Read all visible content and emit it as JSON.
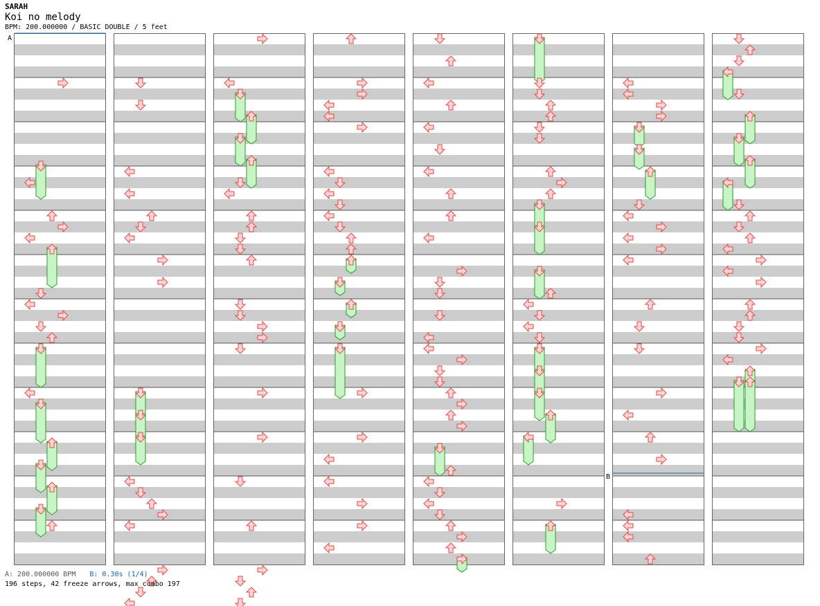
{
  "header": {
    "artist": "SARAH",
    "title": "Koi no melody",
    "info": "BPM: 200.000000 / BASIC DOUBLE / 5 feet"
  },
  "markers": {
    "a_label": "A",
    "b_label": "B"
  },
  "colors": {
    "stripe_dark": "#cccccc",
    "stripe_light": "#ffffff",
    "arrow_fill": "#ffd4d4",
    "arrow_stroke": "#e04a4a",
    "freeze_fill": "#c8f5c8",
    "freeze_stroke": "#2e9a2e",
    "marker_line": "#1565a8"
  },
  "footer": {
    "bpm_note": "A: 200.000000 BPM",
    "stop_note": "B: 0.30s (1/4)",
    "stats": "196 steps, 42 freeze arrows, max combo 197"
  },
  "notes": {
    "col1": [
      [
        "4",
        "r"
      ],
      [
        "11.5",
        "d",
        3
      ],
      [
        "13",
        "l"
      ],
      [
        "16",
        "u"
      ],
      [
        "17",
        "r"
      ],
      [
        "18",
        "l"
      ],
      [
        "19",
        "u",
        3.5
      ],
      [
        "23",
        "d"
      ],
      [
        "24",
        "l"
      ],
      [
        "25",
        "r"
      ],
      [
        "26",
        "d"
      ],
      [
        "27",
        "u"
      ],
      [
        "28",
        "d",
        3.5
      ],
      [
        "32",
        "l"
      ],
      [
        "33",
        "d",
        3.5
      ],
      [
        "36.5",
        "u",
        2.5
      ],
      [
        "38.5",
        "d",
        2.5
      ],
      [
        "40.5",
        "u",
        2.5
      ],
      [
        "42.5",
        "d",
        2.5
      ],
      [
        "44",
        "u"
      ]
    ],
    "col2": [
      [
        "4",
        "d"
      ],
      [
        "6",
        "d"
      ],
      [
        "12",
        "l"
      ],
      [
        "14",
        "l"
      ],
      [
        "16",
        "u"
      ],
      [
        "17",
        "d"
      ],
      [
        "18",
        "l"
      ],
      [
        "20",
        "r"
      ],
      [
        "22",
        "r"
      ],
      [
        "32",
        "d",
        2.5
      ],
      [
        "34",
        "d",
        2.5
      ],
      [
        "36",
        "d",
        2.5
      ],
      [
        "40",
        "l"
      ],
      [
        "41",
        "d"
      ],
      [
        "42",
        "u"
      ],
      [
        "43",
        "r"
      ],
      [
        "44",
        "l"
      ],
      [
        "48",
        "r"
      ],
      [
        "49",
        "u"
      ],
      [
        "50",
        "d"
      ],
      [
        "51",
        "l"
      ]
    ],
    "col3": [
      [
        "0",
        "r"
      ],
      [
        "4",
        "l"
      ],
      [
        "5",
        "d",
        2.5
      ],
      [
        "7",
        "u",
        2.5
      ],
      [
        "9",
        "d",
        2.5
      ],
      [
        "11",
        "u",
        2.5
      ],
      [
        "13",
        "d"
      ],
      [
        "14",
        "l"
      ],
      [
        "16",
        "u"
      ],
      [
        "17",
        "u"
      ],
      [
        "18",
        "d"
      ],
      [
        "19",
        "d"
      ],
      [
        "20",
        "u"
      ],
      [
        "24",
        "d"
      ],
      [
        "25",
        "d"
      ],
      [
        "26",
        "r"
      ],
      [
        "27",
        "r"
      ],
      [
        "28",
        "d"
      ],
      [
        "32",
        "r"
      ],
      [
        "36",
        "r"
      ],
      [
        "40",
        "d"
      ],
      [
        "44",
        "u"
      ],
      [
        "48",
        "r"
      ],
      [
        "49",
        "d"
      ],
      [
        "50",
        "u"
      ],
      [
        "51",
        "d"
      ]
    ],
    "col4": [
      [
        "0",
        "u"
      ],
      [
        "4",
        "r"
      ],
      [
        "5",
        "r"
      ],
      [
        "6",
        "l"
      ],
      [
        "7",
        "l"
      ],
      [
        "8",
        "r"
      ],
      [
        "12",
        "l"
      ],
      [
        "13",
        "d"
      ],
      [
        "14",
        "l"
      ],
      [
        "15",
        "d"
      ],
      [
        "16",
        "l"
      ],
      [
        "17",
        "d"
      ],
      [
        "18",
        "u"
      ],
      [
        "19",
        "u"
      ],
      [
        "20",
        "u",
        1.2
      ],
      [
        "22",
        "d",
        1.2
      ],
      [
        "24",
        "u",
        1.2
      ],
      [
        "26",
        "d",
        1.2
      ],
      [
        "28",
        "d",
        4.5
      ],
      [
        "32",
        "r"
      ],
      [
        "36",
        "r"
      ],
      [
        "38",
        "l"
      ],
      [
        "40",
        "l"
      ],
      [
        "42",
        "r"
      ],
      [
        "44",
        "r"
      ],
      [
        "46",
        "l"
      ]
    ],
    "col5": [
      [
        "0",
        "d"
      ],
      [
        "2",
        "u"
      ],
      [
        "4",
        "l"
      ],
      [
        "6",
        "u"
      ],
      [
        "8",
        "l"
      ],
      [
        "10",
        "d"
      ],
      [
        "12",
        "l"
      ],
      [
        "14",
        "u"
      ],
      [
        "16",
        "u"
      ],
      [
        "18",
        "l"
      ],
      [
        "21",
        "r"
      ],
      [
        "22",
        "d"
      ],
      [
        "23",
        "d"
      ],
      [
        "25",
        "d"
      ],
      [
        "27",
        "l"
      ],
      [
        "28",
        "l"
      ],
      [
        "29",
        "r"
      ],
      [
        "30",
        "d"
      ],
      [
        "31",
        "d"
      ],
      [
        "32",
        "u"
      ],
      [
        "33",
        "r"
      ],
      [
        "34",
        "u"
      ],
      [
        "35",
        "r"
      ],
      [
        "37",
        "d",
        2.5
      ],
      [
        "39",
        "u"
      ],
      [
        "40",
        "l"
      ],
      [
        "41",
        "d"
      ],
      [
        "42",
        "l"
      ],
      [
        "43",
        "d"
      ],
      [
        "44",
        "u"
      ],
      [
        "45",
        "r"
      ],
      [
        "46",
        "u"
      ],
      [
        "47",
        "r",
        1.2
      ]
    ],
    "col6": [
      [
        "0",
        "d",
        4
      ],
      [
        "4",
        "d"
      ],
      [
        "5",
        "d"
      ],
      [
        "6",
        "u"
      ],
      [
        "7",
        "u"
      ],
      [
        "8",
        "d"
      ],
      [
        "9",
        "d"
      ],
      [
        "12",
        "u"
      ],
      [
        "13",
        "r"
      ],
      [
        "14",
        "u"
      ],
      [
        "15",
        "d",
        2.5
      ],
      [
        "17",
        "d",
        2.5
      ],
      [
        "21",
        "d",
        2.5
      ],
      [
        "23",
        "u"
      ],
      [
        "24",
        "l"
      ],
      [
        "25",
        "d"
      ],
      [
        "26",
        "l"
      ],
      [
        "27",
        "d"
      ],
      [
        "28",
        "d",
        2.5
      ],
      [
        "30",
        "d",
        2.5
      ],
      [
        "32",
        "d",
        2.5
      ],
      [
        "34",
        "u",
        2.5
      ],
      [
        "36",
        "l",
        2.5
      ],
      [
        "42",
        "r"
      ],
      [
        "44",
        "u",
        2.5
      ]
    ],
    "col7": [
      [
        "4",
        "l"
      ],
      [
        "5",
        "l"
      ],
      [
        "6",
        "r"
      ],
      [
        "7",
        "r"
      ],
      [
        "8",
        "d",
        1.8
      ],
      [
        "10",
        "d",
        1.8
      ],
      [
        "12",
        "u",
        2.5
      ],
      [
        "15",
        "d"
      ],
      [
        "16",
        "l"
      ],
      [
        "17",
        "r"
      ],
      [
        "18",
        "l"
      ],
      [
        "19",
        "r"
      ],
      [
        "20",
        "l"
      ],
      [
        "24",
        "u"
      ],
      [
        "26",
        "d"
      ],
      [
        "28",
        "d"
      ],
      [
        "32",
        "r"
      ],
      [
        "34",
        "l"
      ],
      [
        "36",
        "u"
      ],
      [
        "38",
        "r"
      ],
      [
        "43",
        "l"
      ],
      [
        "44",
        "l"
      ],
      [
        "45",
        "l"
      ],
      [
        "47",
        "u"
      ]
    ],
    "col8": [
      [
        "0",
        "d"
      ],
      [
        "1",
        "u"
      ],
      [
        "2",
        "d"
      ],
      [
        "3",
        "l",
        2.5
      ],
      [
        "5",
        "d"
      ],
      [
        "7",
        "u",
        2.5
      ],
      [
        "9",
        "d",
        2.5
      ],
      [
        "11",
        "u",
        2.5
      ],
      [
        "13",
        "l",
        2.5
      ],
      [
        "15",
        "d"
      ],
      [
        "16",
        "u"
      ],
      [
        "17",
        "d"
      ],
      [
        "18",
        "u"
      ],
      [
        "19",
        "l"
      ],
      [
        "20",
        "r"
      ],
      [
        "21",
        "l"
      ],
      [
        "22",
        "r"
      ],
      [
        "24",
        "u"
      ],
      [
        "25",
        "u"
      ],
      [
        "26",
        "d"
      ],
      [
        "27",
        "d"
      ],
      [
        "28",
        "r"
      ],
      [
        "29",
        "l"
      ],
      [
        "30",
        "u",
        1.2
      ],
      [
        "31",
        "u",
        4.5
      ],
      [
        "31",
        "d",
        4.5
      ]
    ]
  }
}
